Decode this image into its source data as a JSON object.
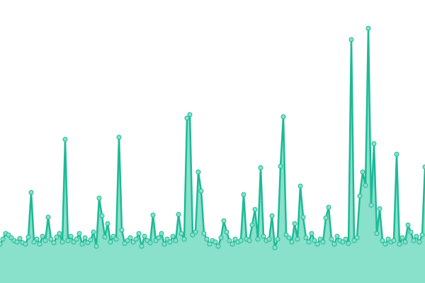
{
  "chart_data": {
    "type": "area",
    "color": "#1dba95",
    "fill": "#89e0cb",
    "ylim": [
      0,
      400
    ],
    "values": [
      55,
      62,
      70,
      68,
      64,
      60,
      58,
      63,
      57,
      55,
      65,
      128,
      58,
      62,
      55,
      66,
      60,
      93,
      62,
      57,
      65,
      70,
      58,
      203,
      60,
      66,
      58,
      62,
      70,
      55,
      64,
      57,
      61,
      72,
      52,
      120,
      95,
      65,
      84,
      58,
      66,
      62,
      206,
      75,
      56,
      60,
      64,
      58,
      62,
      70,
      52,
      66,
      60,
      57,
      96,
      60,
      64,
      70,
      55,
      62,
      58,
      66,
      60,
      97,
      70,
      62,
      233,
      238,
      68,
      72,
      157,
      130,
      70,
      62,
      55,
      60,
      58,
      52,
      64,
      88,
      72,
      60,
      55,
      62,
      58,
      60,
      125,
      62,
      60,
      82,
      104,
      62,
      163,
      66,
      60,
      62,
      95,
      50,
      62,
      165,
      235,
      68,
      64,
      58,
      84,
      62,
      137,
      93,
      64,
      58,
      70,
      60,
      55,
      62,
      58,
      92,
      107,
      62,
      55,
      66,
      60,
      58,
      62,
      56,
      344,
      60,
      64,
      123,
      157,
      138,
      360,
      110,
      197,
      70,
      105,
      60,
      55,
      62,
      58,
      60,
      182,
      55,
      64,
      58,
      82,
      72,
      60,
      66,
      58,
      68,
      164
    ]
  }
}
